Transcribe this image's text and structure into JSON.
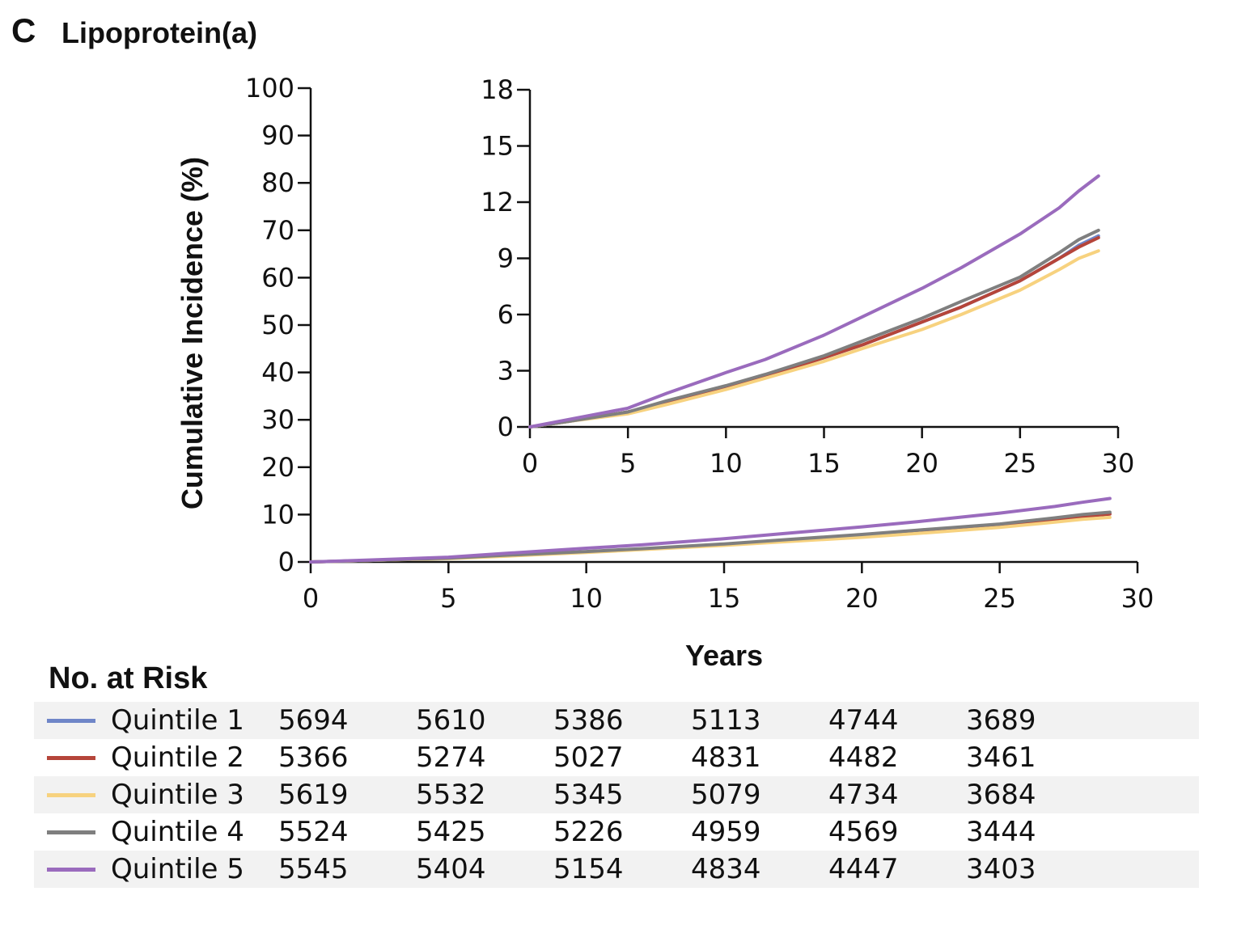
{
  "panel": {
    "letter": "C",
    "title": "Lipoprotein(a)"
  },
  "colors": {
    "Quintile 1": "#6f86c8",
    "Quintile 2": "#b5453a",
    "Quintile 3": "#f7d27f",
    "Quintile 4": "#7f7f7f",
    "Quintile 5": "#9a6bbd"
  },
  "chart_data": [
    {
      "type": "line",
      "role": "main",
      "xlabel": "Years",
      "ylabel": "Cumulative Incidence (%)",
      "xlim": [
        0,
        30
      ],
      "ylim": [
        0,
        100
      ],
      "xticks": [
        "0",
        "5",
        "10",
        "15",
        "20",
        "25",
        "30"
      ],
      "yticks": [
        "0",
        "10",
        "20",
        "30",
        "40",
        "50",
        "60",
        "70",
        "80",
        "90",
        "100"
      ],
      "x": [
        0,
        2,
        5,
        7,
        10,
        12,
        15,
        17,
        20,
        22,
        25,
        27,
        28,
        29
      ],
      "series": [
        {
          "name": "Quintile 1",
          "values": [
            0,
            0.3,
            0.8,
            1.3,
            2.1,
            2.7,
            3.7,
            4.4,
            5.6,
            6.4,
            7.8,
            9.0,
            9.7,
            10.2
          ]
        },
        {
          "name": "Quintile 2",
          "values": [
            0,
            0.3,
            0.8,
            1.3,
            2.1,
            2.7,
            3.7,
            4.4,
            5.6,
            6.4,
            7.8,
            9.0,
            9.6,
            10.1
          ]
        },
        {
          "name": "Quintile 3",
          "values": [
            0,
            0.3,
            0.7,
            1.2,
            2.0,
            2.6,
            3.5,
            4.2,
            5.2,
            6.0,
            7.3,
            8.4,
            9.0,
            9.4
          ]
        },
        {
          "name": "Quintile 4",
          "values": [
            0,
            0.3,
            0.8,
            1.4,
            2.2,
            2.8,
            3.8,
            4.6,
            5.8,
            6.7,
            8.0,
            9.3,
            10.0,
            10.5
          ]
        },
        {
          "name": "Quintile 5",
          "values": [
            0,
            0.4,
            1.0,
            1.8,
            2.9,
            3.6,
            4.9,
            5.9,
            7.4,
            8.5,
            10.3,
            11.7,
            12.6,
            13.4
          ]
        }
      ]
    },
    {
      "type": "line",
      "role": "inset",
      "xlim": [
        0,
        30
      ],
      "ylim": [
        0,
        18
      ],
      "xticks": [
        "0",
        "5",
        "10",
        "15",
        "20",
        "25",
        "30"
      ],
      "yticks": [
        "0",
        "3",
        "6",
        "9",
        "12",
        "15",
        "18"
      ],
      "x": [
        0,
        2,
        5,
        7,
        10,
        12,
        15,
        17,
        20,
        22,
        25,
        27,
        28,
        29
      ],
      "series": [
        {
          "name": "Quintile 1",
          "values": [
            0,
            0.3,
            0.8,
            1.3,
            2.1,
            2.7,
            3.7,
            4.4,
            5.6,
            6.4,
            7.8,
            9.0,
            9.7,
            10.2
          ]
        },
        {
          "name": "Quintile 2",
          "values": [
            0,
            0.3,
            0.8,
            1.3,
            2.1,
            2.7,
            3.7,
            4.4,
            5.6,
            6.4,
            7.8,
            9.0,
            9.6,
            10.1
          ]
        },
        {
          "name": "Quintile 3",
          "values": [
            0,
            0.3,
            0.7,
            1.2,
            2.0,
            2.6,
            3.5,
            4.2,
            5.2,
            6.0,
            7.3,
            8.4,
            9.0,
            9.4
          ]
        },
        {
          "name": "Quintile 4",
          "values": [
            0,
            0.3,
            0.8,
            1.4,
            2.2,
            2.8,
            3.8,
            4.6,
            5.8,
            6.7,
            8.0,
            9.3,
            10.0,
            10.5
          ]
        },
        {
          "name": "Quintile 5",
          "values": [
            0,
            0.4,
            1.0,
            1.8,
            2.9,
            3.6,
            4.9,
            5.9,
            7.4,
            8.5,
            10.3,
            11.7,
            12.6,
            13.4
          ]
        }
      ]
    }
  ],
  "risk_table": {
    "title": "No. at Risk",
    "rows": [
      {
        "label": "Quintile 1",
        "values": [
          "5694",
          "5610",
          "5386",
          "5113",
          "4744",
          "3689"
        ]
      },
      {
        "label": "Quintile 2",
        "values": [
          "5366",
          "5274",
          "5027",
          "4831",
          "4482",
          "3461"
        ]
      },
      {
        "label": "Quintile 3",
        "values": [
          "5619",
          "5532",
          "5345",
          "5079",
          "4734",
          "3684"
        ]
      },
      {
        "label": "Quintile 4",
        "values": [
          "5524",
          "5425",
          "5226",
          "4959",
          "4569",
          "3444"
        ]
      },
      {
        "label": "Quintile 5",
        "values": [
          "5545",
          "5404",
          "5154",
          "4834",
          "4447",
          "3403"
        ]
      }
    ]
  }
}
